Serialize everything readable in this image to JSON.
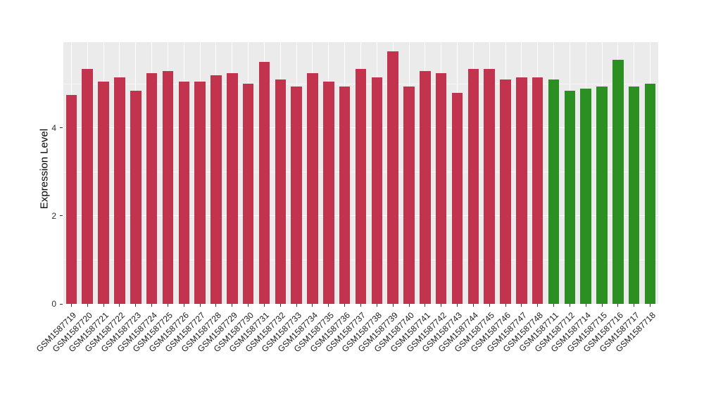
{
  "chart_data": {
    "type": "bar",
    "title": "",
    "xlabel": "",
    "ylabel": "Expression Level",
    "ylim": [
      0,
      5.95
    ],
    "yticks": [
      0,
      2,
      4
    ],
    "minor_yticks": [
      1,
      3,
      5
    ],
    "grid": true,
    "legend": false,
    "x_tick_rotation": 45,
    "panel_background": "#EBEBEB",
    "grid_color": "#FFFFFF",
    "categories": [
      "GSM1587719",
      "GSM1587720",
      "GSM1587721",
      "GSM1587722",
      "GSM1587723",
      "GSM1587724",
      "GSM1587725",
      "GSM1587726",
      "GSM1587727",
      "GSM1587728",
      "GSM1587729",
      "GSM1587730",
      "GSM1587731",
      "GSM1587732",
      "GSM1587733",
      "GSM1587734",
      "GSM1587735",
      "GSM1587736",
      "GSM1587737",
      "GSM1587738",
      "GSM1587739",
      "GSM1587740",
      "GSM1587741",
      "GSM1587742",
      "GSM1587743",
      "GSM1587744",
      "GSM1587745",
      "GSM1587746",
      "GSM1587747",
      "GSM1587748",
      "GSM1587711",
      "GSM1587712",
      "GSM1587714",
      "GSM1587715",
      "GSM1587716",
      "GSM1587717",
      "GSM1587718"
    ],
    "values": [
      4.75,
      5.35,
      5.05,
      5.15,
      4.85,
      5.25,
      5.3,
      5.05,
      5.05,
      5.2,
      5.25,
      5.0,
      5.5,
      5.1,
      4.95,
      5.25,
      5.05,
      4.95,
      5.35,
      5.15,
      5.75,
      4.95,
      5.3,
      5.25,
      4.8,
      5.35,
      5.35,
      5.1,
      5.15,
      5.15,
      5.1,
      4.85,
      4.9,
      4.95,
      5.55,
      4.95,
      5.0
    ],
    "groups": [
      "red",
      "red",
      "red",
      "red",
      "red",
      "red",
      "red",
      "red",
      "red",
      "red",
      "red",
      "red",
      "red",
      "red",
      "red",
      "red",
      "red",
      "red",
      "red",
      "red",
      "red",
      "red",
      "red",
      "red",
      "red",
      "red",
      "red",
      "red",
      "red",
      "red",
      "green",
      "green",
      "green",
      "green",
      "green",
      "green",
      "green"
    ],
    "group_colors": {
      "red": "#C2334D",
      "green": "#2B9021"
    }
  }
}
